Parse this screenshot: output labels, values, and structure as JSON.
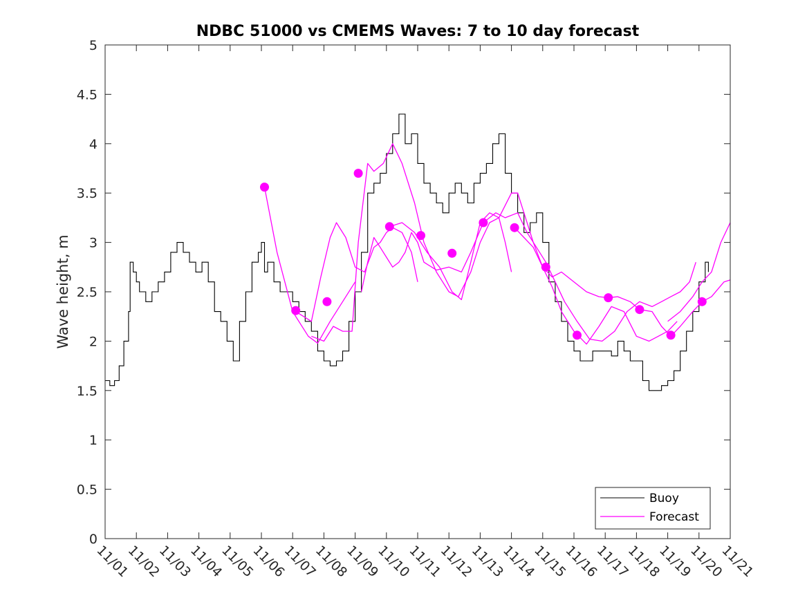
{
  "chart_data": {
    "type": "line",
    "title": "NDBC 51000 vs CMEMS Waves: 7 to 10 day forecast",
    "xlabel": "",
    "ylabel": "Wave height, m",
    "xlim": [
      1,
      21
    ],
    "ylim": [
      0,
      5
    ],
    "grid": false,
    "x_tick_labels": [
      "11/01",
      "11/02",
      "11/03",
      "11/04",
      "11/05",
      "11/06",
      "11/07",
      "11/08",
      "11/09",
      "11/10",
      "11/11",
      "11/12",
      "11/13",
      "11/14",
      "11/15",
      "11/16",
      "11/17",
      "11/18",
      "11/19",
      "11/20",
      "11/21"
    ],
    "y_ticks": [
      0,
      0.5,
      1,
      1.5,
      2,
      2.5,
      3,
      3.5,
      4,
      4.5,
      5
    ],
    "y_tick_labels": [
      "0",
      "0.5",
      "1",
      "1.5",
      "2",
      "2.5",
      "3",
      "3.5",
      "4",
      "4.5",
      "5"
    ],
    "legend": {
      "position": "bottom-right",
      "entries": [
        "Buoy",
        "Forecast"
      ]
    },
    "colors": {
      "buoy": "#000000",
      "forecast": "#ff00ff"
    },
    "buoy": {
      "name": "Buoy",
      "x": [
        1.0,
        1.15,
        1.3,
        1.45,
        1.6,
        1.75,
        1.8,
        1.9,
        2.0,
        2.1,
        2.3,
        2.5,
        2.7,
        2.9,
        3.1,
        3.3,
        3.5,
        3.7,
        3.9,
        4.1,
        4.3,
        4.5,
        4.7,
        4.9,
        5.1,
        5.3,
        5.5,
        5.7,
        5.9,
        6.0,
        6.1,
        6.2,
        6.4,
        6.6,
        6.8,
        7.0,
        7.2,
        7.4,
        7.6,
        7.8,
        8.0,
        8.2,
        8.4,
        8.6,
        8.8,
        9.0,
        9.2,
        9.4,
        9.6,
        9.8,
        10.0,
        10.2,
        10.4,
        10.6,
        10.8,
        11.0,
        11.2,
        11.4,
        11.6,
        11.8,
        12.0,
        12.2,
        12.4,
        12.6,
        12.8,
        13.0,
        13.2,
        13.4,
        13.6,
        13.8,
        14.0,
        14.2,
        14.4,
        14.6,
        14.8,
        15.0,
        15.2,
        15.4,
        15.6,
        15.8,
        16.0,
        16.2,
        16.4,
        16.6,
        16.8,
        17.0,
        17.2,
        17.4,
        17.6,
        17.8,
        18.0,
        18.2,
        18.4,
        18.6,
        18.8,
        19.0,
        19.2,
        19.4,
        19.6,
        19.8,
        20.0,
        20.2,
        20.3
      ],
      "y": [
        1.6,
        1.55,
        1.6,
        1.75,
        2.0,
        2.3,
        2.8,
        2.7,
        2.6,
        2.5,
        2.4,
        2.5,
        2.6,
        2.7,
        2.9,
        3.0,
        2.9,
        2.8,
        2.7,
        2.8,
        2.6,
        2.3,
        2.2,
        2.0,
        1.8,
        2.2,
        2.5,
        2.8,
        2.9,
        3.0,
        2.7,
        2.8,
        2.6,
        2.5,
        2.5,
        2.4,
        2.3,
        2.2,
        2.1,
        1.9,
        1.8,
        1.75,
        1.8,
        1.9,
        2.2,
        2.5,
        2.9,
        3.5,
        3.6,
        3.7,
        3.9,
        4.1,
        4.3,
        4.0,
        4.1,
        3.8,
        3.6,
        3.5,
        3.4,
        3.3,
        3.5,
        3.6,
        3.5,
        3.4,
        3.6,
        3.7,
        3.8,
        4.0,
        4.1,
        3.7,
        3.5,
        3.3,
        3.1,
        3.2,
        3.3,
        3.0,
        2.6,
        2.4,
        2.2,
        2.0,
        1.9,
        1.8,
        1.8,
        1.9,
        1.9,
        1.9,
        1.85,
        2.0,
        1.9,
        1.8,
        1.8,
        1.6,
        1.5,
        1.5,
        1.55,
        1.6,
        1.7,
        1.9,
        2.1,
        2.3,
        2.6,
        2.8,
        2.7
      ]
    },
    "forecast": {
      "name": "Forecast",
      "runs": [
        {
          "x": [
            6.1,
            6.5,
            7.0,
            7.5,
            7.8,
            8.2,
            8.6,
            9.0
          ],
          "y": [
            3.56,
            2.9,
            2.3,
            2.05,
            1.98,
            2.2,
            2.4,
            2.6
          ]
        },
        {
          "x": [
            7.2,
            7.6,
            7.9,
            8.2,
            8.4,
            8.7,
            9.0,
            9.3,
            9.6,
            9.8,
            10.0,
            10.2,
            10.5,
            10.8,
            11.0
          ],
          "y": [
            2.28,
            2.2,
            2.65,
            3.05,
            3.2,
            3.05,
            2.75,
            2.7,
            2.95,
            3.0,
            3.1,
            3.15,
            3.1,
            2.9,
            2.6
          ]
        },
        {
          "x": [
            7.6,
            8.0,
            8.3,
            8.6,
            8.9,
            9.1,
            9.4,
            9.6,
            9.9,
            10.2,
            10.5,
            10.9,
            11.2,
            11.6,
            12.0,
            12.3,
            12.7,
            13.0,
            13.3,
            13.6,
            13.8,
            14.0
          ],
          "y": [
            2.05,
            2.0,
            2.15,
            2.1,
            2.1,
            3.0,
            3.8,
            3.72,
            3.8,
            4.0,
            3.8,
            3.4,
            3.0,
            2.7,
            2.5,
            2.45,
            2.7,
            3.0,
            3.2,
            3.25,
            3.0,
            2.7
          ]
        },
        {
          "x": [
            9.2,
            9.4,
            9.6,
            9.8,
            10.0,
            10.2,
            10.4,
            10.6,
            10.8,
            11.0,
            11.2,
            11.6,
            12.0,
            12.4,
            12.7,
            13.1,
            13.5,
            13.8,
            14.2,
            14.5,
            14.8,
            15.1,
            15.4,
            15.7,
            16.1,
            16.5,
            16.9,
            17.3,
            17.7,
            18.1,
            18.5,
            18.8,
            19.1,
            19.4,
            19.7,
            19.9
          ],
          "y": [
            2.5,
            2.8,
            3.05,
            2.95,
            2.85,
            2.75,
            2.8,
            2.9,
            3.1,
            3.0,
            2.8,
            2.72,
            2.75,
            2.7,
            2.9,
            3.2,
            3.3,
            3.25,
            3.3,
            3.1,
            2.95,
            2.8,
            2.6,
            2.4,
            2.2,
            2.02,
            2.0,
            2.1,
            2.3,
            2.4,
            2.35,
            2.4,
            2.45,
            2.5,
            2.6,
            2.8
          ]
        },
        {
          "x": [
            10.1,
            10.5,
            10.9,
            11.3,
            11.7,
            12.1,
            12.4,
            12.7,
            13.0,
            13.3,
            13.6,
            14.0,
            14.2,
            14.4,
            14.7,
            15.0,
            15.3,
            15.6,
            16.0,
            16.4,
            16.8,
            17.2,
            17.6,
            18.0,
            18.4,
            18.7,
            19.0,
            19.3
          ],
          "y": [
            3.16,
            3.2,
            3.1,
            2.9,
            2.75,
            2.5,
            2.42,
            2.8,
            3.2,
            3.3,
            3.25,
            3.5,
            3.5,
            3.3,
            3.0,
            2.75,
            2.55,
            2.3,
            2.1,
            1.97,
            2.15,
            2.35,
            2.3,
            2.05,
            2.0,
            2.05,
            2.1,
            2.2
          ]
        },
        {
          "x": [
            14.1,
            14.4,
            14.7,
            15.0,
            15.3,
            15.6,
            16.0,
            16.4,
            16.8,
            17.1,
            17.4,
            17.8,
            18.1,
            18.5,
            18.8,
            19.1,
            19.4,
            19.8,
            20.1,
            20.4,
            20.8,
            21.0
          ],
          "y": [
            3.15,
            3.05,
            2.95,
            2.75,
            2.65,
            2.7,
            2.6,
            2.5,
            2.45,
            2.44,
            2.45,
            2.4,
            2.32,
            2.3,
            2.15,
            2.05,
            2.15,
            2.3,
            2.4,
            2.45,
            2.6,
            2.62
          ]
        },
        {
          "x": [
            19.0,
            19.4,
            19.8,
            20.1,
            20.4,
            20.7,
            21.0
          ],
          "y": [
            2.2,
            2.3,
            2.45,
            2.6,
            2.7,
            3.0,
            3.2
          ]
        }
      ],
      "markers": {
        "x": [
          6.1,
          7.1,
          8.1,
          9.1,
          10.1,
          11.1,
          12.1,
          13.1,
          14.1,
          15.1,
          16.1,
          17.1,
          18.1,
          19.1,
          20.1
        ],
        "y": [
          3.56,
          2.31,
          2.4,
          3.7,
          3.16,
          3.07,
          2.89,
          3.2,
          3.15,
          2.75,
          2.06,
          2.44,
          2.32,
          2.06,
          2.4
        ]
      }
    }
  }
}
